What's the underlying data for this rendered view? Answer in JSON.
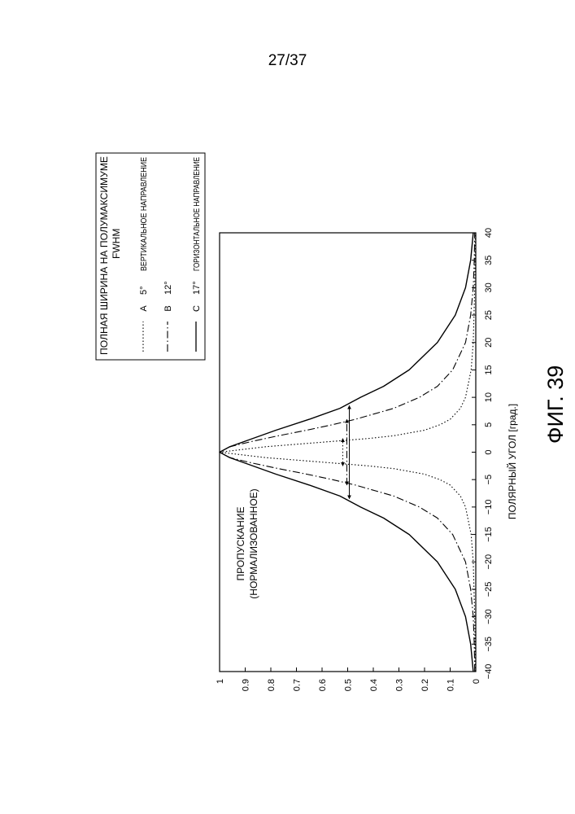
{
  "page_number": "27/37",
  "figure_caption": "ФИГ. 39",
  "chart_data": {
    "type": "line",
    "ylabel": "ПРОПУСКАНИЕ\n(НОРМАЛИЗОВАННОЕ)",
    "xlabel": "ПОЛЯРНЫЙ УГОЛ [град.]",
    "xlim": [
      -40,
      40
    ],
    "ylim": [
      0,
      1
    ],
    "x_ticks": [
      "−40",
      "−35",
      "−30",
      "−25",
      "−20",
      "−15",
      "−10",
      "−5",
      "0",
      "5",
      "10",
      "15",
      "20",
      "25",
      "30",
      "35",
      "40"
    ],
    "y_ticks": [
      "0",
      "0.1",
      "0.2",
      "0.3",
      "0.4",
      "0.5",
      "0.6",
      "0.7",
      "0.8",
      "0.9",
      "1"
    ],
    "grid": false,
    "legend": {
      "title_line1": "ПОЛНАЯ ШИРИНА НА ПОЛУМАКСИМУМЕ",
      "title_line2": "FWHM",
      "items": [
        {
          "letter": "A",
          "value": "5°",
          "description": "ВЕРТИКАЛЬНОЕ НАПРАВЛЕНИЕ",
          "style": "dotted"
        },
        {
          "letter": "B",
          "value": "12°",
          "description": "",
          "style": "dash-dot"
        },
        {
          "letter": "C",
          "value": "17°",
          "description": "ГОРИЗОНТАЛЬНОЕ НАПРАВЛЕНИЕ",
          "style": "solid"
        }
      ]
    },
    "series": [
      {
        "key": "A",
        "fwhm": 5,
        "style": "dotted",
        "x": [
          -40,
          -30,
          -20,
          -15,
          -10,
          -8,
          -6,
          -5,
          -4,
          -3,
          -2.5,
          -2,
          -1,
          0,
          1,
          2,
          2.5,
          3,
          4,
          5,
          6,
          8,
          10,
          15,
          20,
          30,
          40
        ],
        "y": [
          0.002,
          0.004,
          0.01,
          0.018,
          0.04,
          0.06,
          0.1,
          0.14,
          0.2,
          0.32,
          0.42,
          0.55,
          0.82,
          1.0,
          0.82,
          0.55,
          0.42,
          0.32,
          0.2,
          0.14,
          0.1,
          0.06,
          0.04,
          0.018,
          0.01,
          0.004,
          0.002
        ]
      },
      {
        "key": "B",
        "fwhm": 12,
        "style": "dash-dot",
        "x": [
          -40,
          -35,
          -30,
          -25,
          -20,
          -15,
          -12,
          -10,
          -8,
          -6,
          -5,
          -4,
          -3,
          -2,
          -1,
          0,
          1,
          2,
          3,
          4,
          5,
          6,
          8,
          10,
          12,
          15,
          20,
          25,
          30,
          35,
          40
        ],
        "y": [
          0.004,
          0.006,
          0.01,
          0.02,
          0.04,
          0.09,
          0.15,
          0.22,
          0.32,
          0.47,
          0.56,
          0.66,
          0.77,
          0.87,
          0.96,
          1.0,
          0.96,
          0.87,
          0.77,
          0.66,
          0.56,
          0.47,
          0.32,
          0.22,
          0.15,
          0.09,
          0.04,
          0.02,
          0.01,
          0.006,
          0.004
        ]
      },
      {
        "key": "C",
        "fwhm": 17,
        "style": "solid",
        "x": [
          -40,
          -35,
          -30,
          -25,
          -20,
          -15,
          -12,
          -10,
          -8,
          -6,
          -4,
          -2,
          -1,
          0,
          1,
          2,
          4,
          6,
          8,
          10,
          12,
          15,
          20,
          25,
          30,
          35,
          40
        ],
        "y": [
          0.01,
          0.02,
          0.04,
          0.08,
          0.15,
          0.26,
          0.36,
          0.45,
          0.53,
          0.65,
          0.78,
          0.9,
          0.96,
          1.0,
          0.96,
          0.9,
          0.78,
          0.65,
          0.53,
          0.45,
          0.36,
          0.26,
          0.15,
          0.08,
          0.04,
          0.02,
          0.01
        ]
      }
    ],
    "annotations": [
      {
        "type": "fwhm-arrow",
        "series": "A",
        "x1": -2.5,
        "x2": 2.5,
        "y": 0.5
      },
      {
        "type": "fwhm-arrow",
        "series": "B",
        "x1": -6,
        "x2": 6,
        "y": 0.5
      },
      {
        "type": "fwhm-arrow",
        "series": "C",
        "x1": -8.5,
        "x2": 8.5,
        "y": 0.5
      }
    ]
  }
}
